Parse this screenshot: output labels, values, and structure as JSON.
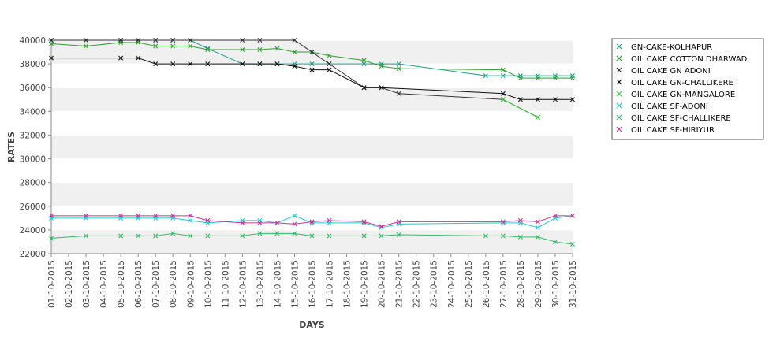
{
  "chart_data": {
    "type": "line",
    "xlabel": "DAYS",
    "ylabel": "RATES",
    "ylim": [
      22000,
      40000
    ],
    "yticks": [
      22000,
      24000,
      26000,
      28000,
      30000,
      32000,
      34000,
      36000,
      38000,
      40000
    ],
    "grid": "horizontal alternating bands",
    "legend_position": "right",
    "categories": [
      "01-10-2015",
      "02-10-2015",
      "03-10-2015",
      "04-10-2015",
      "05-10-2015",
      "06-10-2015",
      "07-10-2015",
      "08-10-2015",
      "09-10-2015",
      "10-10-2015",
      "11-10-2015",
      "12-10-2015",
      "13-10-2015",
      "14-10-2015",
      "15-10-2015",
      "16-10-2015",
      "17-10-2015",
      "18-10-2015",
      "19-10-2015",
      "20-10-2015",
      "21-10-2015",
      "22-10-2015",
      "23-10-2015",
      "24-10-2015",
      "25-10-2015",
      "26-10-2015",
      "27-10-2015",
      "28-10-2015",
      "29-10-2015",
      "30-10-2015",
      "31-10-2015"
    ],
    "series": [
      {
        "name": "GN-CAKE-KOLHAPUR",
        "color": "#1a9d8f",
        "values": [
          40000,
          null,
          40000,
          null,
          40000,
          40000,
          40000,
          40000,
          40000,
          39300,
          null,
          38000,
          38000,
          38000,
          38000,
          38000,
          38000,
          null,
          38000,
          38000,
          38000,
          null,
          null,
          null,
          null,
          37000,
          37000,
          37000,
          37000,
          37000,
          37000
        ]
      },
      {
        "name": "OIL CAKE COTTON DHARWAD",
        "color": "#2ca02c",
        "values": [
          39700,
          null,
          39500,
          null,
          39800,
          39800,
          39500,
          39500,
          39500,
          39200,
          null,
          39200,
          39200,
          39300,
          39000,
          39000,
          38700,
          null,
          38300,
          37800,
          37600,
          null,
          null,
          null,
          null,
          null,
          37500,
          36800,
          36800,
          36800,
          36800
        ]
      },
      {
        "name": "OIL CAKE GN ADONI",
        "color": "#333333",
        "values": [
          40000,
          null,
          40000,
          null,
          40000,
          40000,
          40000,
          40000,
          40000,
          null,
          null,
          40000,
          40000,
          null,
          40000,
          39000,
          38000,
          null,
          36000,
          36000,
          35500,
          null,
          null,
          null,
          null,
          null,
          35000,
          null,
          33500,
          null,
          null
        ]
      },
      {
        "name": "OIL CAKE GN-CHALLIKERE",
        "color": "#111111",
        "values": [
          38500,
          null,
          null,
          null,
          38500,
          38500,
          38000,
          38000,
          38000,
          38000,
          null,
          38000,
          38000,
          38000,
          37800,
          37500,
          37500,
          null,
          36000,
          36000,
          null,
          null,
          null,
          null,
          null,
          null,
          35500,
          35000,
          35000,
          35000,
          35000
        ]
      },
      {
        "name": "OIL CAKE GN-MANGALORE",
        "color": "#33cc33",
        "values": [
          null,
          null,
          null,
          null,
          null,
          null,
          null,
          null,
          null,
          null,
          null,
          null,
          null,
          null,
          null,
          null,
          null,
          null,
          null,
          null,
          null,
          null,
          null,
          null,
          null,
          null,
          35000,
          null,
          33500,
          null,
          null
        ]
      },
      {
        "name": "OIL CAKE SF-ADONI",
        "color": "#22cccc",
        "values": [
          25000,
          null,
          25000,
          null,
          25000,
          25000,
          25000,
          25000,
          24800,
          24600,
          null,
          24800,
          24800,
          24600,
          25200,
          24600,
          24600,
          null,
          24600,
          24200,
          24500,
          null,
          null,
          null,
          null,
          null,
          24600,
          24600,
          24200,
          25000,
          25200
        ]
      },
      {
        "name": "OIL CAKE SF-CHALLIKERE",
        "color": "#33bb66",
        "values": [
          23300,
          null,
          23500,
          null,
          23500,
          23500,
          23500,
          23700,
          23500,
          23500,
          null,
          23500,
          23700,
          23700,
          23700,
          23500,
          23500,
          null,
          23500,
          23500,
          23600,
          null,
          null,
          null,
          null,
          23500,
          23500,
          23400,
          23400,
          23000,
          22800
        ]
      },
      {
        "name": "OIL CAKE SF-HIRIYUR",
        "color": "#cc3399",
        "values": [
          25200,
          null,
          25200,
          null,
          25200,
          25200,
          25200,
          25200,
          25200,
          24800,
          null,
          24600,
          24600,
          24600,
          24500,
          24700,
          24800,
          null,
          24700,
          24300,
          24700,
          null,
          null,
          null,
          null,
          null,
          24700,
          24800,
          24700,
          25200,
          25200
        ]
      }
    ]
  }
}
